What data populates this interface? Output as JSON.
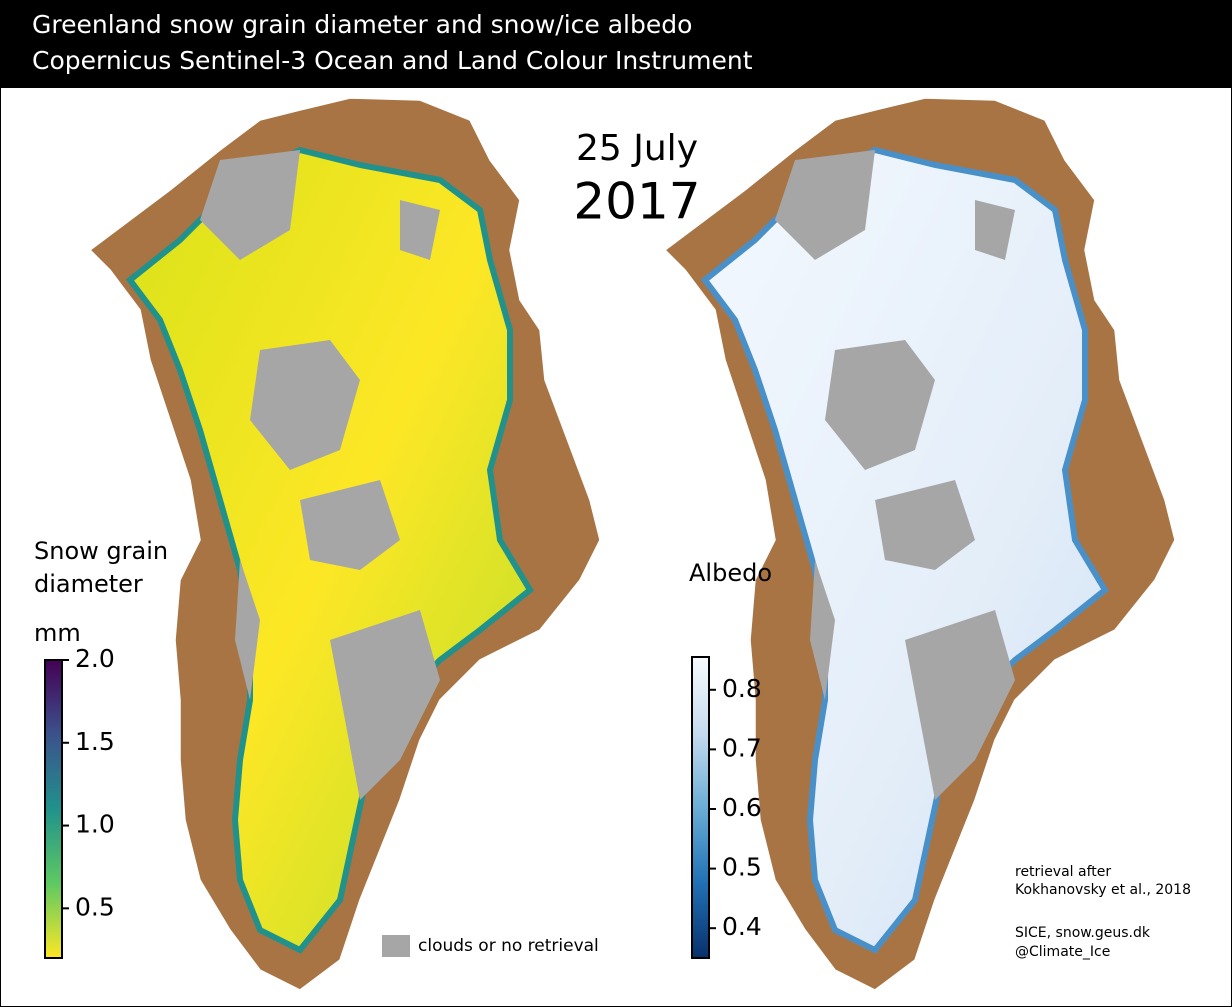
{
  "header": {
    "title_lines": [
      "Greenland snow grain diameter and snow/ice albedo",
      "Copernicus Sentinel-3 Ocean and Land Colour Instrument"
    ]
  },
  "date": {
    "day": "25 July",
    "year": "2017"
  },
  "maps": [
    {
      "label_lines": [
        "Snow grain",
        "diameter"
      ],
      "unit": "mm",
      "colorbar": {
        "lim": [
          0.2,
          2.0
        ],
        "ticks": [
          0.5,
          {
            "value": 1,
            "label": "1.0"
          },
          1.5,
          {
            "value": 2,
            "label": "2.0"
          }
        ],
        "colors": [
          "#440154",
          "#3b528b",
          "#21918c",
          "#5ec962",
          "#fde725"
        ]
      }
    },
    {
      "label_lines": [
        "Albedo"
      ],
      "colorbar": {
        "lim": [
          0.35,
          0.855
        ],
        "ticks": [
          0.4,
          0.5,
          0.6,
          0.7,
          0.8
        ],
        "colors": [
          "#f7fbff",
          "#c6dbef",
          "#6baed6",
          "#2171b5",
          "#08306b"
        ]
      }
    }
  ],
  "legend": {
    "label": "clouds or no retrieval",
    "color": "#a6a6a6"
  },
  "credits": [
    "retrieval after",
    "Kokhanovsky et al., 2018",
    "SICE, snow.geus.dk",
    "@Climate_Ice"
  ]
}
